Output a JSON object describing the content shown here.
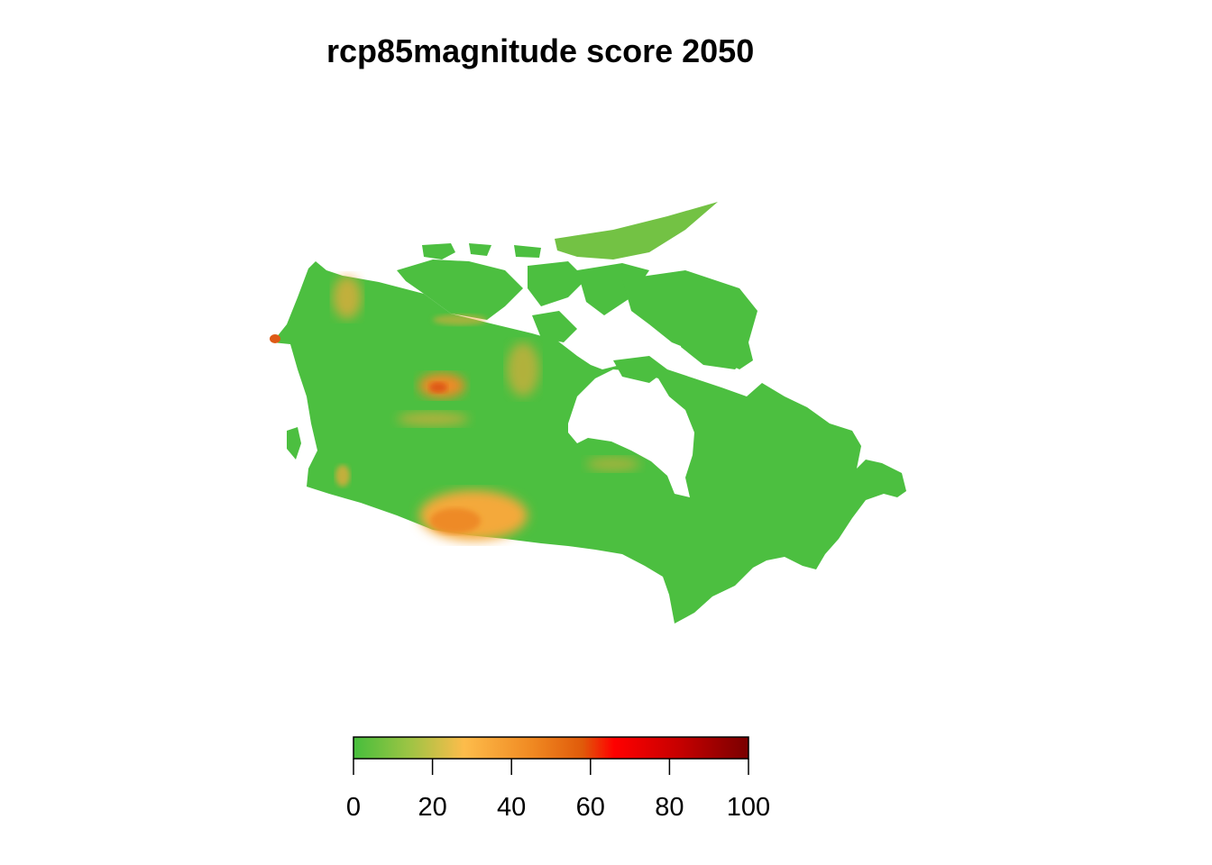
{
  "title": "rcp85magnitude score 2050",
  "legend": {
    "min": 0,
    "max": 100,
    "ticks": [
      "0",
      "20",
      "40",
      "60",
      "80",
      "100"
    ],
    "colors": [
      "#46be3c",
      "#9cc444",
      "#fdbc4b",
      "#f08a22",
      "#e05a0a",
      "#ff0000",
      "#c80000",
      "#7a0000"
    ]
  },
  "map": {
    "region": "Canada",
    "base_color": "#4cbf40",
    "hotspot_colors": [
      "#f4a93a",
      "#ee8a28",
      "#de5a16"
    ]
  }
}
